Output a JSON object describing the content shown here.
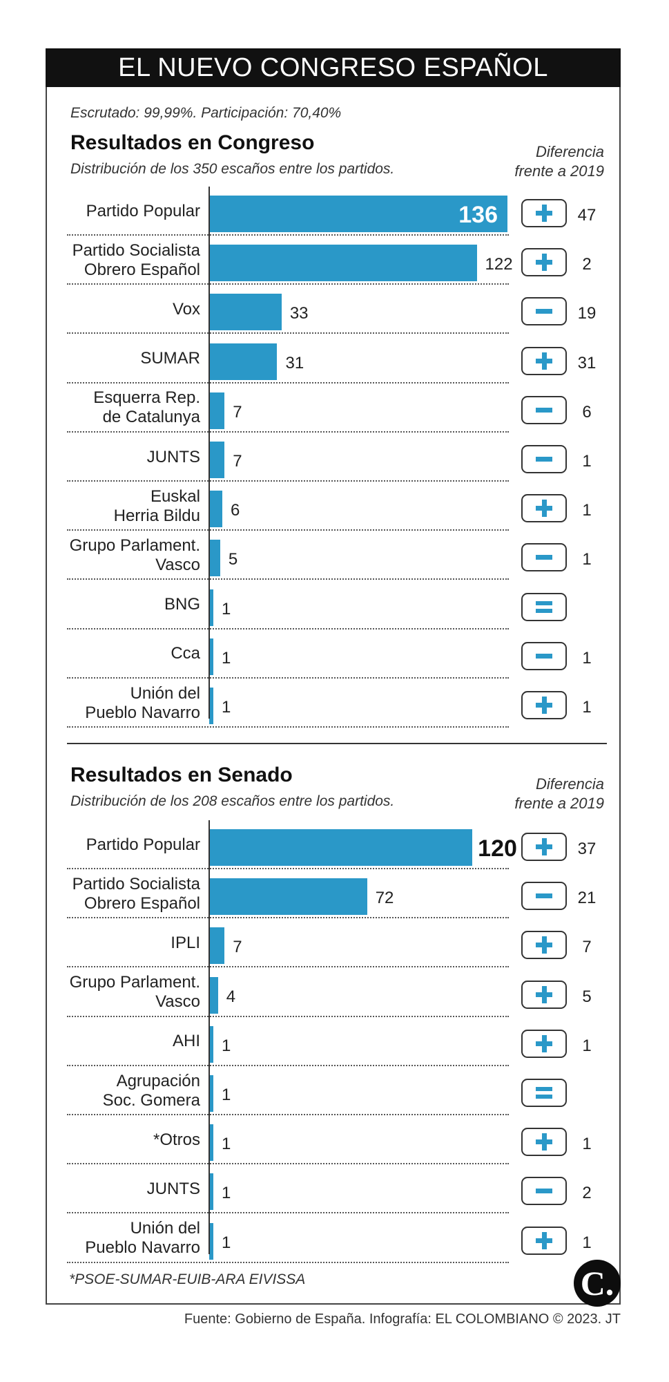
{
  "header": {
    "title": "EL NUEVO CONGRESO ESPAÑOL"
  },
  "meta": {
    "scrutiny": "Escrutado: 99,99%. Participación: 70,40%"
  },
  "colors": {
    "bar": "#2a98c8",
    "title_bg": "#111111"
  },
  "chart_data": [
    {
      "type": "bar",
      "orientation": "horizontal",
      "title": "Resultados en Congreso",
      "subtitle": "Distribución de los 350 escaños entre los partidos.",
      "diff_header": [
        "Diferencia",
        "frente a 2019"
      ],
      "categories": [
        [
          "Partido Popular"
        ],
        [
          "Partido Socialista",
          "Obrero Español"
        ],
        [
          "Vox"
        ],
        [
          "SUMAR"
        ],
        [
          "Esquerra Rep.",
          "de Catalunya"
        ],
        [
          "JUNTS"
        ],
        [
          "Euskal",
          "Herria Bildu"
        ],
        [
          "Grupo Parlament.",
          "Vasco"
        ],
        [
          "BNG"
        ],
        [
          "Cca"
        ],
        [
          "Unión del",
          "Pueblo Navarro"
        ]
      ],
      "values": [
        136,
        122,
        33,
        31,
        7,
        7,
        6,
        5,
        1,
        1,
        1
      ],
      "change_sign": [
        "+",
        "+",
        "-",
        "+",
        "-",
        "-",
        "+",
        "-",
        "=",
        "-",
        "+"
      ],
      "change_value": [
        "47",
        "2",
        "19",
        "31",
        "6",
        "1",
        "1",
        "1",
        "",
        "1",
        "1"
      ],
      "xlim": [
        0,
        136
      ]
    },
    {
      "type": "bar",
      "orientation": "horizontal",
      "title": "Resultados en Senado",
      "subtitle": "Distribución de los 208 escaños entre los partidos.",
      "diff_header": [
        "Diferencia",
        "frente a 2019"
      ],
      "categories": [
        [
          "Partido Popular"
        ],
        [
          "Partido Socialista",
          "Obrero Español"
        ],
        [
          "IPLI"
        ],
        [
          "Grupo Parlament.",
          "Vasco"
        ],
        [
          "AHI"
        ],
        [
          "Agrupación",
          "Soc. Gomera"
        ],
        [
          "*Otros"
        ],
        [
          "JUNTS"
        ],
        [
          "Unión del",
          "Pueblo Navarro"
        ]
      ],
      "values": [
        120,
        72,
        7,
        4,
        1,
        1,
        1,
        1,
        1
      ],
      "change_sign": [
        "+",
        "-",
        "+",
        "+",
        "+",
        "=",
        "+",
        "-",
        "+"
      ],
      "change_value": [
        "37",
        "21",
        "7",
        "5",
        "1",
        "",
        "1",
        "2",
        "1"
      ],
      "xlim": [
        0,
        136
      ]
    }
  ],
  "footnote": "*PSOE-SUMAR-EUIB-ARA EIVISSA",
  "logo": {
    "letter": "C."
  },
  "source": "Fuente: Gobierno de España. Infografía: EL COLOMBIANO © 2023. JT"
}
